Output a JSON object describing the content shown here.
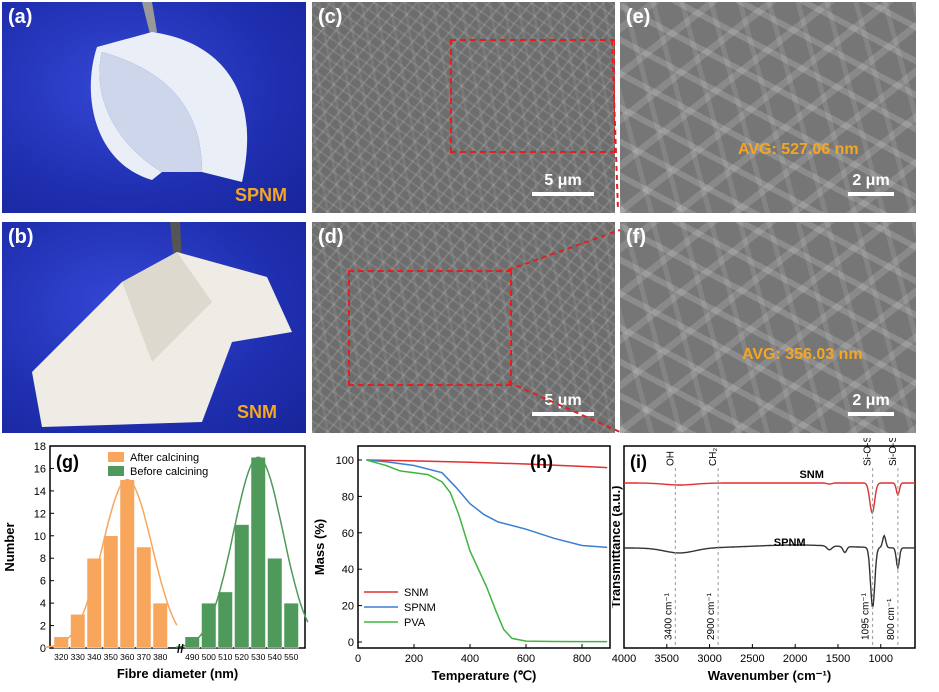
{
  "panels": {
    "a": {
      "label": "(a)",
      "sample": "SPNM"
    },
    "b": {
      "label": "(b)",
      "sample": "SNM"
    },
    "c": {
      "label": "(c)",
      "scale": "5 μm"
    },
    "d": {
      "label": "(d)",
      "scale": "5 μm"
    },
    "e": {
      "label": "(e)",
      "scale": "2 μm",
      "avg": "AVG: 527.06 nm"
    },
    "f": {
      "label": "(f)",
      "scale": "2 μm",
      "avg": "AVG: 356.03 nm"
    }
  },
  "chart_data": [
    {
      "id": "g",
      "type": "bar",
      "label": "(g)",
      "xlabel": "Fibre diameter (nm)",
      "ylabel": "Number",
      "ylim": [
        0,
        18
      ],
      "yticks": [
        "0",
        "2",
        "4",
        "6",
        "8",
        "10",
        "12",
        "14",
        "16",
        "18"
      ],
      "series": [
        {
          "name": "After calcining",
          "color": "#f7a65c",
          "x": [
            320,
            330,
            340,
            350,
            360,
            370,
            380
          ],
          "values": [
            1,
            3,
            8,
            10,
            15,
            9,
            4
          ]
        },
        {
          "name": "Before calcining",
          "color": "#4f9a5a",
          "x": [
            490,
            500,
            510,
            520,
            530,
            540,
            550
          ],
          "values": [
            1,
            4,
            5,
            11,
            17,
            8,
            4
          ]
        }
      ],
      "xtick_labels_left": [
        "320",
        "330",
        "340",
        "350",
        "360",
        "370",
        "380"
      ],
      "xtick_labels_right": [
        "490",
        "500",
        "510",
        "520",
        "530",
        "540",
        "550"
      ]
    },
    {
      "id": "h",
      "type": "line",
      "label": "(h)",
      "xlabel": "Temperature (℃)",
      "ylabel": "Mass (%)",
      "xlim": [
        0,
        900
      ],
      "ylim": [
        0,
        100
      ],
      "xticks": [
        "0",
        "200",
        "400",
        "600",
        "800"
      ],
      "yticks": [
        "0",
        "20",
        "40",
        "60",
        "80",
        "100"
      ],
      "series": [
        {
          "name": "SNM",
          "color": "#e03030",
          "x": [
            30,
            200,
            400,
            600,
            800,
            890
          ],
          "y": [
            100,
            99.5,
            98.8,
            97.8,
            96.5,
            95.8
          ]
        },
        {
          "name": "SPNM",
          "color": "#3a7fd0",
          "x": [
            30,
            100,
            200,
            300,
            350,
            400,
            450,
            500,
            550,
            600,
            700,
            800,
            890
          ],
          "y": [
            100,
            99,
            97,
            93,
            85,
            76,
            70,
            66,
            64,
            62,
            57,
            53,
            52
          ]
        },
        {
          "name": "PVA",
          "color": "#3fb53f",
          "x": [
            30,
            100,
            150,
            200,
            250,
            300,
            330,
            360,
            400,
            430,
            460,
            490,
            520,
            550,
            600,
            700,
            800,
            890
          ],
          "y": [
            100,
            97,
            94,
            93,
            92,
            88,
            82,
            70,
            50,
            40,
            30,
            18,
            7,
            2,
            0.5,
            0.3,
            0.2,
            0.2
          ]
        }
      ]
    },
    {
      "id": "i",
      "type": "line",
      "label": "(i)",
      "xlabel": "Wavenumber (cm⁻¹)",
      "ylabel": "Transmittance (a.u.)",
      "xlim": [
        4000,
        600
      ],
      "xticks": [
        "4000",
        "3500",
        "3000",
        "2500",
        "2000",
        "1500",
        "1000"
      ],
      "series": [
        {
          "name": "SNM",
          "color": "#e03030"
        },
        {
          "name": "SPNM",
          "color": "#333333"
        }
      ],
      "annotations": {
        "top": [
          "OH",
          "CH₂",
          "Si-O-Si",
          "Si-O-Si"
        ],
        "bottom": [
          "3400 cm⁻¹",
          "2900 cm⁻¹",
          "1095 cm⁻¹",
          "800 cm⁻¹"
        ]
      }
    }
  ]
}
